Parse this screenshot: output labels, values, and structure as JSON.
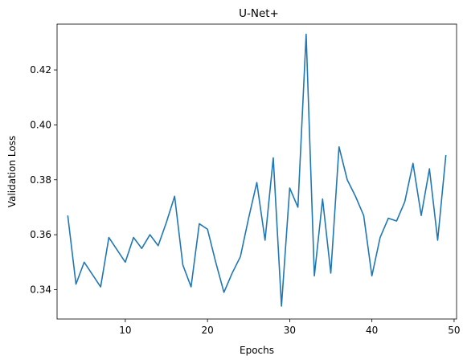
{
  "chart_data": {
    "type": "line",
    "title": "U-Net+",
    "xlabel": "Epochs",
    "ylabel": "Validation Loss",
    "xlim": [
      1.7,
      50.3
    ],
    "ylim": [
      0.3293,
      0.4367
    ],
    "xticks": [
      10,
      20,
      30,
      40,
      50
    ],
    "yticks": [
      0.34,
      0.36,
      0.38,
      0.4,
      0.42
    ],
    "ytick_labels": [
      "0.34",
      "0.36",
      "0.38",
      "0.40",
      "0.42"
    ],
    "xtick_labels": [
      "10",
      "20",
      "30",
      "40",
      "50"
    ],
    "grid": false,
    "series": [
      {
        "color": "#1f77b4",
        "x": [
          3,
          4,
          5,
          6,
          7,
          8,
          9,
          10,
          11,
          12,
          13,
          14,
          15,
          16,
          17,
          18,
          19,
          20,
          21,
          22,
          23,
          24,
          25,
          26,
          27,
          28,
          29,
          30,
          31,
          32,
          33,
          34,
          35,
          36,
          37,
          38,
          39,
          40,
          41,
          42,
          43,
          44,
          45,
          46,
          47,
          48,
          49
        ],
        "y": [
          0.367,
          0.342,
          0.35,
          0.3455,
          0.341,
          0.359,
          0.3545,
          0.35,
          0.359,
          0.355,
          0.36,
          0.356,
          0.3645,
          0.374,
          0.349,
          0.341,
          0.364,
          0.362,
          0.35,
          0.339,
          0.346,
          0.352,
          0.366,
          0.379,
          0.358,
          0.388,
          0.334,
          0.377,
          0.37,
          0.433,
          0.345,
          0.373,
          0.346,
          0.392,
          0.38,
          0.374,
          0.367,
          0.345,
          0.359,
          0.366,
          0.365,
          0.372,
          0.386,
          0.367,
          0.384,
          0.358,
          0.389
        ]
      }
    ]
  }
}
